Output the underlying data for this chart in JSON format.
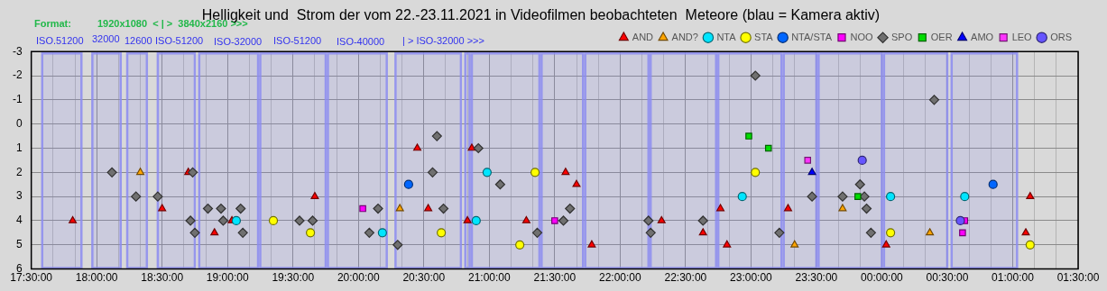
{
  "chart_data": {
    "type": "scatter",
    "title": "Helligkeit und  Strom der vom 22.-23.11.2021 in Videofilmen beobachteten  Meteore (blau = Kamera aktiv)",
    "annotations": [
      "Format:",
      "1920x1080  < | >  3840x2160 >>>",
      "ISO.51200",
      "32000",
      "12600",
      "ISO-51200",
      "ISO-32000",
      "ISO-51200",
      "ISO-40000",
      "| > ISO-32000 >>>"
    ],
    "xlim": [
      "2021-11-22T17:30",
      "2021-11-23T01:30"
    ],
    "ylim": [
      6,
      -3
    ],
    "yticks": [
      -3,
      -2,
      -1,
      0,
      1,
      2,
      3,
      4,
      5,
      6
    ],
    "xticks": [
      {
        "value": "2021-11-22T17:30",
        "label": "17:30:00"
      },
      {
        "value": "2021-11-22T17:40",
        "label": null
      },
      {
        "value": "2021-11-22T17:50",
        "label": null
      },
      {
        "value": "2021-11-22T18:00",
        "label": "18:00:00"
      },
      {
        "value": "2021-11-22T18:10",
        "label": null
      },
      {
        "value": "2021-11-22T18:20",
        "label": null
      },
      {
        "value": "2021-11-22T18:30",
        "label": "18:30:00"
      },
      {
        "value": "2021-11-22T18:40",
        "label": null
      },
      {
        "value": "2021-11-22T18:50",
        "label": null
      },
      {
        "value": "2021-11-22T19:00",
        "label": "19:00:00"
      },
      {
        "value": "2021-11-22T19:10",
        "label": null
      },
      {
        "value": "2021-11-22T19:20",
        "label": null
      },
      {
        "value": "2021-11-22T19:30",
        "label": "19:30:00"
      },
      {
        "value": "2021-11-22T19:40",
        "label": null
      },
      {
        "value": "2021-11-22T19:50",
        "label": null
      },
      {
        "value": "2021-11-22T20:00",
        "label": "20:00:00"
      },
      {
        "value": "2021-11-22T20:10",
        "label": null
      },
      {
        "value": "2021-11-22T20:20",
        "label": null
      },
      {
        "value": "2021-11-22T20:30",
        "label": "20:30:00"
      },
      {
        "value": "2021-11-22T20:40",
        "label": null
      },
      {
        "value": "2021-11-22T20:50",
        "label": null
      },
      {
        "value": "2021-11-22T21:00",
        "label": "21:00:00"
      },
      {
        "value": "2021-11-22T21:10",
        "label": null
      },
      {
        "value": "2021-11-22T21:20",
        "label": null
      },
      {
        "value": "2021-11-22T21:30",
        "label": "21:30:00"
      },
      {
        "value": "2021-11-22T21:40",
        "label": null
      },
      {
        "value": "2021-11-22T21:50",
        "label": null
      },
      {
        "value": "2021-11-22T22:00",
        "label": "22:00:00"
      },
      {
        "value": "2021-11-22T22:10",
        "label": null
      },
      {
        "value": "2021-11-22T22:20",
        "label": null
      },
      {
        "value": "2021-11-22T22:30",
        "label": "22:30:00"
      },
      {
        "value": "2021-11-22T22:40",
        "label": null
      },
      {
        "value": "2021-11-22T22:50",
        "label": null
      },
      {
        "value": "2021-11-22T23:00",
        "label": "23:00:00"
      },
      {
        "value": "2021-11-22T23:10",
        "label": null
      },
      {
        "value": "2021-11-22T23:20",
        "label": null
      },
      {
        "value": "2021-11-22T23:30",
        "label": "23:30:00"
      },
      {
        "value": "2021-11-22T23:40",
        "label": null
      },
      {
        "value": "2021-11-22T23:50",
        "label": null
      },
      {
        "value": "2021-11-23T00:00",
        "label": "00:00:00"
      },
      {
        "value": "2021-11-23T00:10",
        "label": null
      },
      {
        "value": "2021-11-23T00:20",
        "label": null
      },
      {
        "value": "2021-11-23T00:30",
        "label": "00:30:00"
      },
      {
        "value": "2021-11-23T00:40",
        "label": null
      },
      {
        "value": "2021-11-23T00:50",
        "label": null
      },
      {
        "value": "2021-11-23T01:00",
        "label": "01:00:00"
      },
      {
        "value": "2021-11-23T01:10",
        "label": null
      },
      {
        "value": "2021-11-23T01:20",
        "label": null
      },
      {
        "value": "2021-11-23T01:30",
        "label": "01:30:00"
      }
    ],
    "grid": true,
    "legend": "top right",
    "bands": [
      {
        "axis": "x",
        "from": "2021-11-22T17:35",
        "to": "2021-11-22T17:53",
        "color": "#8c8cf0"
      },
      {
        "axis": "x",
        "from": "2021-11-22T17:58",
        "to": "2021-11-22T18:11",
        "color": "#8c8cf0"
      },
      {
        "axis": "x",
        "from": "2021-11-22T18:14",
        "to": "2021-11-22T18:23",
        "color": "#8c8cf0"
      },
      {
        "axis": "x",
        "from": "2021-11-22T18:28",
        "to": "2021-11-22T18:45",
        "color": "#8c8cf0"
      },
      {
        "axis": "x",
        "from": "2021-11-22T18:47",
        "to": "2021-11-22T19:14",
        "color": "#8c8cf0"
      },
      {
        "axis": "x",
        "from": "2021-11-22T19:15",
        "to": "2021-11-22T19:45",
        "color": "#8c8cf0"
      },
      {
        "axis": "x",
        "from": "2021-11-22T19:46",
        "to": "2021-11-22T20:13",
        "color": "#8c8cf0"
      },
      {
        "axis": "x",
        "from": "2021-11-22T20:17",
        "to": "2021-11-22T20:47",
        "color": "#8c8cf0"
      },
      {
        "axis": "x",
        "from": "2021-11-22T20:49",
        "to": "2021-11-22T20:51",
        "color": "#8c8cf0"
      },
      {
        "axis": "x",
        "from": "2021-11-22T20:52",
        "to": "2021-11-22T21:23",
        "color": "#8c8cf0"
      },
      {
        "axis": "x",
        "from": "2021-11-22T21:24",
        "to": "2021-11-22T21:43",
        "color": "#8c8cf0"
      },
      {
        "axis": "x",
        "from": "2021-11-22T21:44",
        "to": "2021-11-22T22:13",
        "color": "#8c8cf0"
      },
      {
        "axis": "x",
        "from": "2021-11-22T22:14",
        "to": "2021-11-22T22:44",
        "color": "#8c8cf0"
      },
      {
        "axis": "x",
        "from": "2021-11-22T22:45",
        "to": "2021-11-22T23:14",
        "color": "#8c8cf0"
      },
      {
        "axis": "x",
        "from": "2021-11-22T23:15",
        "to": "2021-11-22T23:30",
        "color": "#8c8cf0"
      },
      {
        "axis": "x",
        "from": "2021-11-22T23:31",
        "to": "2021-11-23T00:00",
        "color": "#8c8cf0"
      },
      {
        "axis": "x",
        "from": "2021-11-23T00:01",
        "to": "2021-11-23T00:30",
        "color": "#8c8cf0"
      },
      {
        "axis": "x",
        "from": "2021-11-23T00:32",
        "to": "2021-11-23T01:02",
        "color": "#8c8cf0"
      }
    ],
    "series": [
      {
        "name": "AND",
        "color": "#ff0000",
        "marker": "triangle",
        "x": [
          "2021-11-22T17:49",
          "2021-11-22T18:30",
          "2021-11-22T18:42",
          "2021-11-22T18:54",
          "2021-11-22T19:02",
          "2021-11-22T19:40",
          "2021-11-22T20:27",
          "2021-11-22T20:32",
          "2021-11-22T20:50",
          "2021-11-22T20:52",
          "2021-11-22T21:17",
          "2021-11-22T21:35",
          "2021-11-22T21:40",
          "2021-11-22T21:47",
          "2021-11-22T22:19",
          "2021-11-22T22:38",
          "2021-11-22T22:46",
          "2021-11-22T22:49",
          "2021-11-22T23:17",
          "2021-11-23T00:02",
          "2021-11-23T01:08",
          "2021-11-23T01:06"
        ],
        "values": [
          4,
          3.5,
          2,
          4.5,
          4,
          3,
          1,
          3.5,
          4,
          1,
          4,
          2,
          2.5,
          5,
          4,
          4.5,
          3.5,
          5,
          3.5,
          5,
          3,
          4.5
        ]
      },
      {
        "name": "AND?",
        "color": "#ffa500",
        "marker": "triangle",
        "x": [
          "2021-11-22T18:20",
          "2021-11-22T20:19",
          "2021-11-22T23:20",
          "2021-11-22T23:42",
          "2021-11-23T00:22"
        ],
        "values": [
          2,
          3.5,
          5,
          3.5,
          4.5
        ]
      },
      {
        "name": "NTA",
        "color": "#00e5ff",
        "marker": "circle",
        "x": [
          "2021-11-22T19:04",
          "2021-11-22T20:11",
          "2021-11-22T20:54",
          "2021-11-22T20:59",
          "2021-11-22T22:56",
          "2021-11-23T00:04",
          "2021-11-23T00:38"
        ],
        "values": [
          4,
          4.5,
          4,
          2,
          3,
          3,
          3
        ]
      },
      {
        "name": "STA",
        "color": "#ffff00",
        "marker": "circle",
        "x": [
          "2021-11-22T19:21",
          "2021-11-22T19:38",
          "2021-11-22T20:38",
          "2021-11-22T21:14",
          "2021-11-22T21:21",
          "2021-11-22T23:02",
          "2021-11-23T00:04",
          "2021-11-23T01:08"
        ],
        "values": [
          4,
          4.5,
          4.5,
          5,
          2,
          2,
          4.5,
          5
        ]
      },
      {
        "name": "NTA/STA",
        "color": "#0066ff",
        "marker": "circle",
        "x": [
          "2021-11-22T20:23",
          "2021-11-23T00:51"
        ],
        "values": [
          2.5,
          2.5
        ]
      },
      {
        "name": "NOO",
        "color": "#ff00ff",
        "marker": "square",
        "x": [
          "2021-11-22T20:02",
          "2021-11-22T21:30",
          "2021-11-23T00:38",
          "2021-11-23T00:37"
        ],
        "values": [
          3.5,
          4,
          4,
          4.5
        ]
      },
      {
        "name": "SPO",
        "color": "#707070",
        "marker": "diamond",
        "x": [
          "2021-11-22T18:07",
          "2021-11-22T18:18",
          "2021-11-22T18:28",
          "2021-11-22T18:44",
          "2021-11-22T18:43",
          "2021-11-22T18:45",
          "2021-11-22T18:51",
          "2021-11-22T18:57",
          "2021-11-22T18:58",
          "2021-11-22T19:06",
          "2021-11-22T19:07",
          "2021-11-22T19:33",
          "2021-11-22T19:39",
          "2021-11-22T20:09",
          "2021-11-22T20:05",
          "2021-11-22T20:18",
          "2021-11-22T20:34",
          "2021-11-22T20:36",
          "2021-11-22T20:39",
          "2021-11-22T20:55",
          "2021-11-22T21:05",
          "2021-11-22T21:22",
          "2021-11-22T21:34",
          "2021-11-22T21:37",
          "2021-11-22T22:13",
          "2021-11-22T22:14",
          "2021-11-22T22:38",
          "2021-11-22T23:02",
          "2021-11-22T23:13",
          "2021-11-22T23:28",
          "2021-11-22T23:42",
          "2021-11-22T23:52",
          "2021-11-22T23:50",
          "2021-11-22T23:53",
          "2021-11-22T23:55",
          "2021-11-23T00:24"
        ],
        "values": [
          2,
          3,
          3,
          2,
          4,
          4.5,
          3.5,
          3.5,
          4,
          3.5,
          4.5,
          4,
          4,
          3.5,
          4.5,
          5,
          2,
          0.5,
          3.5,
          1,
          2.5,
          4.5,
          4,
          3.5,
          4,
          4.5,
          4,
          -2,
          4.5,
          3,
          3,
          3,
          2.5,
          3.5,
          4.5,
          -1
        ]
      },
      {
        "name": "OER",
        "color": "#00dd00",
        "marker": "square",
        "x": [
          "2021-11-22T22:59",
          "2021-11-22T23:08",
          "2021-11-22T23:49"
        ],
        "values": [
          0.5,
          1,
          3
        ]
      },
      {
        "name": "AMO",
        "color": "#0000ff",
        "marker": "triangle",
        "x": [
          "2021-11-22T23:28"
        ],
        "values": [
          2
        ]
      },
      {
        "name": "LEO",
        "color": "#ff33ff",
        "marker": "square",
        "x": [
          "2021-11-22T23:26"
        ],
        "values": [
          1.5
        ]
      },
      {
        "name": "ORS",
        "color": "#6655ff",
        "marker": "circle",
        "x": [
          "2021-11-22T23:51",
          "2021-11-23T00:36"
        ],
        "values": [
          1.5,
          4
        ]
      }
    ]
  }
}
